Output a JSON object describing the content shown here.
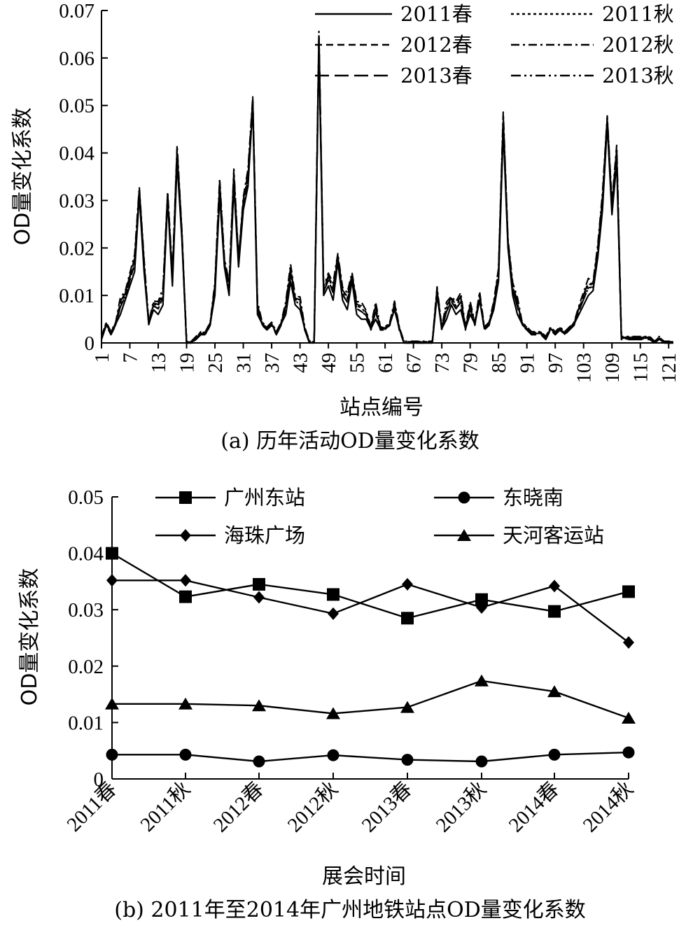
{
  "chart_data": [
    {
      "type": "line",
      "caption": "(a) 历年活动OD量变化系数",
      "xlabel": "站点编号",
      "ylabel": "OD量变化系数",
      "ylim": [
        0,
        0.07
      ],
      "yticks": [
        "0",
        "0.01",
        "0.02",
        "0.03",
        "0.04",
        "0.05",
        "0.06",
        "0.07"
      ],
      "xlim": [
        1,
        122
      ],
      "xticks": [
        "1",
        "7",
        "13",
        "19",
        "25",
        "31",
        "37",
        "43",
        "49",
        "55",
        "61",
        "67",
        "73",
        "79",
        "85",
        "91",
        "97",
        "103",
        "109",
        "115",
        "121"
      ],
      "legend_position": "top-right",
      "series": [
        {
          "name": "2011春",
          "dash": "solid",
          "offset": 0.0,
          "key_points": [
            [
              1,
              0.001
            ],
            [
              2,
              0.004
            ],
            [
              3,
              0.002
            ],
            [
              4,
              0.004
            ],
            [
              5,
              0.006
            ],
            [
              6,
              0.009
            ],
            [
              7,
              0.012
            ],
            [
              8,
              0.015
            ],
            [
              9,
              0.031
            ],
            [
              10,
              0.015
            ],
            [
              11,
              0.004
            ],
            [
              12,
              0.007
            ],
            [
              13,
              0.006
            ],
            [
              14,
              0.008
            ],
            [
              15,
              0.03
            ],
            [
              16,
              0.012
            ],
            [
              17,
              0.038
            ],
            [
              18,
              0.022
            ],
            [
              19,
              0.0
            ],
            [
              20,
              0.0
            ],
            [
              21,
              0.001
            ],
            [
              22,
              0.002
            ],
            [
              23,
              0.002
            ],
            [
              24,
              0.004
            ],
            [
              25,
              0.01
            ],
            [
              26,
              0.031
            ],
            [
              27,
              0.016
            ],
            [
              28,
              0.01
            ],
            [
              29,
              0.033
            ],
            [
              30,
              0.016
            ],
            [
              31,
              0.028
            ],
            [
              32,
              0.033
            ],
            [
              33,
              0.05
            ],
            [
              34,
              0.006
            ],
            [
              35,
              0.004
            ],
            [
              36,
              0.003
            ],
            [
              37,
              0.004
            ],
            [
              38,
              0.002
            ],
            [
              39,
              0.004
            ],
            [
              40,
              0.006
            ],
            [
              41,
              0.013
            ],
            [
              42,
              0.008
            ],
            [
              43,
              0.007
            ],
            [
              44,
              0.003
            ],
            [
              45,
              0.0
            ],
            [
              46,
              0.0
            ],
            [
              47,
              0.062
            ],
            [
              48,
              0.01
            ],
            [
              49,
              0.012
            ],
            [
              50,
              0.009
            ],
            [
              51,
              0.017
            ],
            [
              52,
              0.009
            ],
            [
              53,
              0.007
            ],
            [
              54,
              0.013
            ],
            [
              55,
              0.006
            ],
            [
              56,
              0.005
            ],
            [
              57,
              0.005
            ],
            [
              58,
              0.003
            ],
            [
              59,
              0.005
            ],
            [
              60,
              0.003
            ],
            [
              61,
              0.003
            ],
            [
              62,
              0.004
            ],
            [
              63,
              0.007
            ],
            [
              64,
              0.003
            ],
            [
              65,
              0.0
            ],
            [
              66,
              0.0
            ],
            [
              67,
              0.0
            ],
            [
              68,
              0.0
            ],
            [
              69,
              0.0
            ],
            [
              70,
              0.0
            ],
            [
              71,
              0.0
            ],
            [
              72,
              0.01
            ],
            [
              73,
              0.003
            ],
            [
              74,
              0.005
            ],
            [
              75,
              0.008
            ],
            [
              76,
              0.006
            ],
            [
              77,
              0.007
            ],
            [
              78,
              0.003
            ],
            [
              79,
              0.006
            ],
            [
              80,
              0.004
            ],
            [
              81,
              0.009
            ],
            [
              82,
              0.003
            ],
            [
              83,
              0.004
            ],
            [
              84,
              0.007
            ],
            [
              85,
              0.013
            ],
            [
              86,
              0.045
            ],
            [
              87,
              0.02
            ],
            [
              88,
              0.01
            ],
            [
              89,
              0.006
            ],
            [
              90,
              0.004
            ],
            [
              91,
              0.003
            ],
            [
              92,
              0.002
            ],
            [
              93,
              0.002
            ],
            [
              94,
              0.002
            ],
            [
              95,
              0.001
            ],
            [
              96,
              0.003
            ],
            [
              97,
              0.002
            ],
            [
              98,
              0.003
            ],
            [
              99,
              0.002
            ],
            [
              100,
              0.003
            ],
            [
              101,
              0.004
            ],
            [
              102,
              0.006
            ],
            [
              103,
              0.008
            ],
            [
              104,
              0.01
            ],
            [
              105,
              0.011
            ],
            [
              106,
              0.018
            ],
            [
              107,
              0.028
            ],
            [
              108,
              0.046
            ],
            [
              109,
              0.027
            ],
            [
              110,
              0.038
            ],
            [
              111,
              0.001
            ],
            [
              112,
              0.001
            ],
            [
              113,
              0.001
            ],
            [
              114,
              0.001
            ],
            [
              115,
              0.001
            ],
            [
              116,
              0.001
            ],
            [
              117,
              0.001
            ],
            [
              118,
              0.0
            ],
            [
              119,
              0.001
            ],
            [
              120,
              0.0
            ],
            [
              121,
              0.0
            ],
            [
              122,
              0.0
            ]
          ]
        },
        {
          "name": "2011秋",
          "dash": "dotted",
          "offset": 0.0012
        },
        {
          "name": "2012春",
          "dash": "dashed",
          "offset": -0.0008
        },
        {
          "name": "2012秋",
          "dash": "dashdot",
          "offset": 0.0018
        },
        {
          "name": "2013春",
          "dash": "longdash",
          "offset": -0.0014
        },
        {
          "name": "2013秋",
          "dash": "dashdotdot",
          "offset": 0.0008
        }
      ]
    },
    {
      "type": "line",
      "caption": "(b) 2011年至2014年广州地铁站点OD量变化系数",
      "xlabel": "展会时间",
      "ylabel": "OD量变化系数",
      "ylim": [
        0,
        0.05
      ],
      "yticks": [
        "0",
        "0.01",
        "0.02",
        "0.03",
        "0.04",
        "0.05"
      ],
      "categories": [
        "2011春",
        "2011秋",
        "2012春",
        "2012秋",
        "2013春",
        "2013秋",
        "2014春",
        "2014秋"
      ],
      "legend_position": "top",
      "series": [
        {
          "name": "广州东站",
          "marker": "square",
          "values": [
            0.04,
            0.0323,
            0.0345,
            0.0327,
            0.0285,
            0.0318,
            0.0297,
            0.0332
          ]
        },
        {
          "name": "东晓南",
          "marker": "circle",
          "values": [
            0.0043,
            0.0043,
            0.0031,
            0.0042,
            0.0034,
            0.0031,
            0.0043,
            0.0047
          ]
        },
        {
          "name": "海珠广场",
          "marker": "diamond",
          "values": [
            0.0352,
            0.0352,
            0.0322,
            0.0293,
            0.0345,
            0.0304,
            0.0342,
            0.0242
          ]
        },
        {
          "name": "天河客运站",
          "marker": "triangle",
          "values": [
            0.0133,
            0.0133,
            0.013,
            0.0116,
            0.0127,
            0.0174,
            0.0155,
            0.0108
          ]
        }
      ]
    }
  ]
}
